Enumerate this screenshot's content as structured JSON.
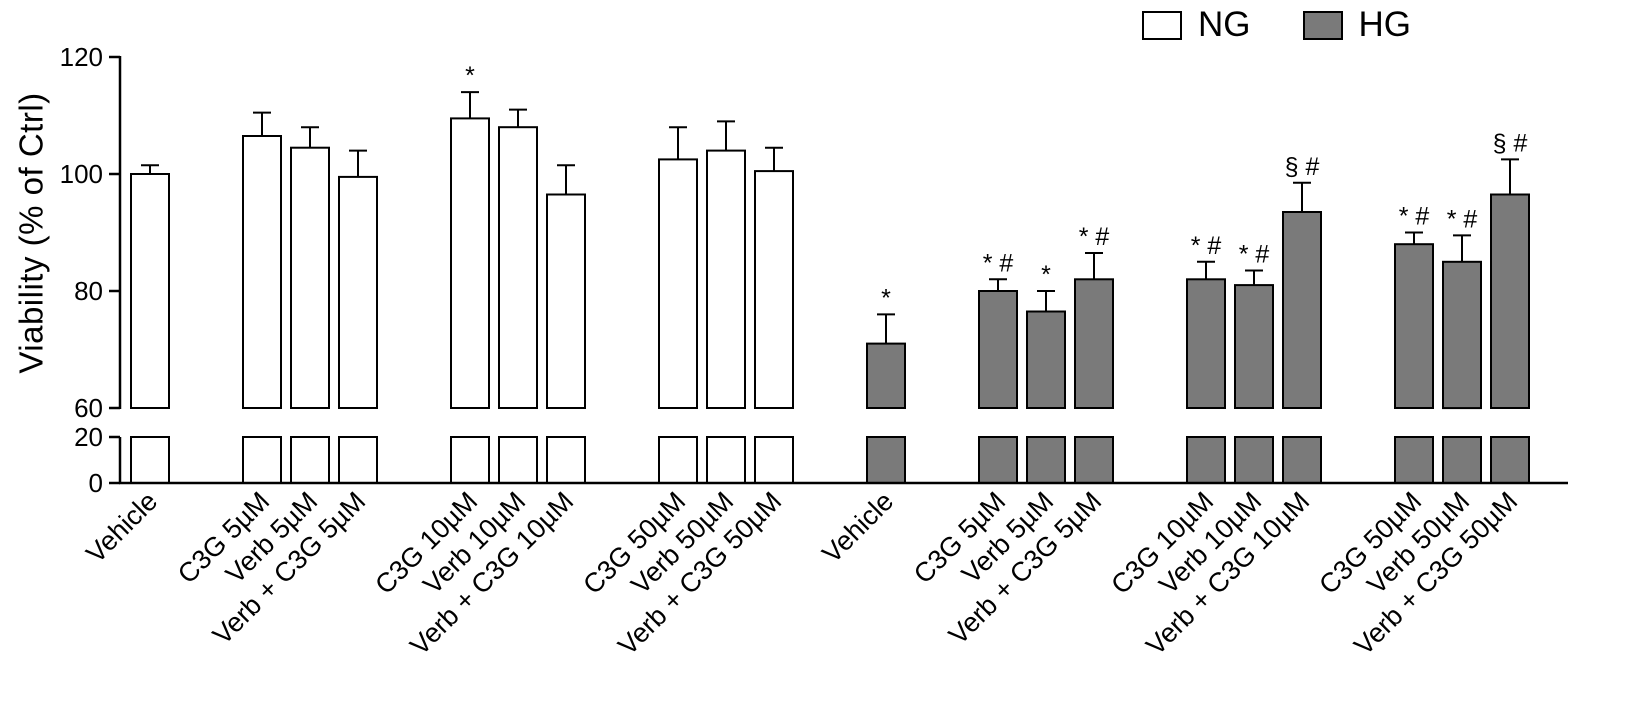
{
  "chart_data": {
    "type": "bar",
    "title": "",
    "xlabel": "",
    "ylabel": "Viability (% of Ctrl)",
    "legend": {
      "position": "top-right",
      "entries": [
        {
          "label": "NG",
          "color": "#ffffff"
        },
        {
          "label": "HG",
          "color": "#7a7a7a"
        }
      ]
    },
    "bar_edge_color": "#000000",
    "y_axis": {
      "broken": true,
      "segments": [
        {
          "range": [
            0,
            20
          ],
          "ticks": [
            0,
            20
          ]
        },
        {
          "range": [
            60,
            120
          ],
          "ticks": [
            60,
            80,
            100,
            120
          ]
        }
      ]
    },
    "categories": [
      "Vehicle",
      "C3G 5µM",
      "Verb 5µM",
      "Verb + C3G 5µM",
      "C3G 10µM",
      "Verb 10µM",
      "Verb + C3G 10µM",
      "C3G 50µM",
      "Verb 50µM",
      "Verb + C3G 50µM"
    ],
    "grouping": [
      1,
      3,
      3,
      3
    ],
    "series": [
      {
        "name": "NG",
        "color": "#ffffff",
        "values": [
          100,
          106.5,
          104.5,
          99.5,
          109.5,
          108,
          96.5,
          102.5,
          104,
          100.5
        ],
        "errors": [
          1.5,
          4,
          3.5,
          4.5,
          4.5,
          3,
          5,
          5.5,
          5,
          4
        ],
        "annotations": [
          "",
          "",
          "",
          "",
          "*",
          "",
          "",
          "",
          "",
          ""
        ]
      },
      {
        "name": "HG",
        "color": "#7a7a7a",
        "values": [
          71,
          80,
          76.5,
          82,
          82,
          81,
          93.5,
          88,
          85,
          96.5
        ],
        "errors": [
          5,
          2,
          3.5,
          4.5,
          3,
          2.5,
          5,
          2,
          4.5,
          6
        ],
        "annotations": [
          "*",
          "* #",
          "*",
          "* #",
          "* #",
          "* #",
          "§ #",
          "* #",
          "* #",
          "§ #"
        ]
      }
    ]
  }
}
